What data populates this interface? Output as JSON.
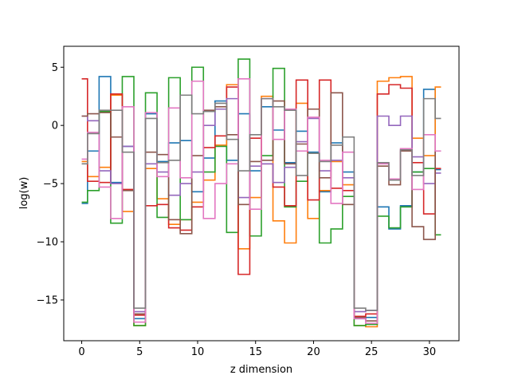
{
  "chart_data": {
    "type": "line",
    "drawstyle": "steps-mid",
    "title": "",
    "xlabel": "z dimension",
    "ylabel": "log(w)",
    "xlim": [
      -1.55,
      32.55
    ],
    "ylim": [
      -18.5,
      6.8
    ],
    "xticks": [
      0,
      5,
      10,
      15,
      20,
      25,
      30
    ],
    "yticks": [
      5,
      0,
      -5,
      -10,
      -15
    ],
    "ytick_labels": [
      "5",
      "0",
      "−5",
      "−10",
      "−15"
    ],
    "grid": false,
    "legend": "none",
    "x": [
      0,
      1,
      2,
      3,
      4,
      5,
      6,
      7,
      8,
      9,
      10,
      11,
      12,
      13,
      14,
      15,
      16,
      17,
      18,
      19,
      20,
      21,
      22,
      23,
      24,
      25,
      26,
      27,
      28,
      29,
      30,
      31
    ],
    "series": [
      {
        "color": "#1f77b4",
        "values": [
          -6.7,
          -2.2,
          4.2,
          -4.9,
          -1.8,
          -16.6,
          1.0,
          -3.1,
          -1.5,
          -1.3,
          -5.7,
          -2.8,
          2.1,
          -3.0,
          1.0,
          -3.9,
          1.6,
          -0.4,
          -3.2,
          -0.5,
          -2.3,
          -5.7,
          -1.5,
          -4.0,
          -16.6,
          -16.5,
          -7.0,
          -8.9,
          -6.9,
          -4.0,
          3.1,
          -3.8
        ]
      },
      {
        "color": "#ff7f0e",
        "values": [
          -3.1,
          -4.4,
          -3.6,
          2.6,
          -7.4,
          -17.2,
          -3.7,
          -6.3,
          -8.5,
          -8.1,
          -6.6,
          -4.7,
          -1.7,
          3.5,
          -10.6,
          -6.2,
          2.5,
          -8.2,
          -10.1,
          1.9,
          -8.0,
          -5.6,
          -3.1,
          -5.1,
          -17.2,
          -17.3,
          3.8,
          4.1,
          4.2,
          -1.1,
          -2.6,
          3.3
        ]
      },
      {
        "color": "#2ca02c",
        "values": [
          -6.6,
          -5.6,
          1.2,
          -8.4,
          4.2,
          -17.2,
          2.8,
          -7.9,
          4.1,
          -8.1,
          5.0,
          -4.0,
          -1.8,
          -9.2,
          5.7,
          -9.5,
          -2.6,
          4.9,
          -7.0,
          -4.8,
          -2.4,
          -10.1,
          -8.9,
          -6.1,
          -17.2,
          -17.1,
          -7.8,
          -8.8,
          -7.0,
          -4.0,
          -3.7,
          -9.4
        ]
      },
      {
        "color": "#d62728",
        "values": [
          4.0,
          -4.8,
          -4.9,
          2.7,
          -5.5,
          -16.3,
          -6.9,
          -6.8,
          -8.8,
          -9.0,
          -7.0,
          -1.9,
          -0.9,
          3.3,
          -12.8,
          -1.1,
          -3.3,
          -5.3,
          -6.9,
          3.9,
          -6.4,
          3.9,
          -5.4,
          -5.6,
          -16.4,
          -16.2,
          2.7,
          3.5,
          3.2,
          -3.2,
          -7.6,
          -3.7
        ]
      },
      {
        "color": "#9467bd",
        "values": [
          0.8,
          0.4,
          -3.9,
          -5.0,
          -1.8,
          -16.0,
          -3.3,
          -4.0,
          -6.0,
          -5.0,
          -4.0,
          0.0,
          1.4,
          2.3,
          -6.2,
          -3.5,
          -3.3,
          -4.9,
          -3.6,
          -1.4,
          0.6,
          -3.9,
          -3.0,
          -4.5,
          -16.0,
          -15.9,
          0.8,
          0.0,
          0.8,
          -2.7,
          -5.0,
          -4.1
        ]
      },
      {
        "color": "#8c564b",
        "values": [
          0.8,
          1.0,
          1.1,
          -1.0,
          -5.6,
          -16.2,
          -2.3,
          -2.5,
          -8.1,
          -9.3,
          -2.6,
          1.3,
          1.6,
          -0.8,
          -6.8,
          -3.1,
          -3.0,
          2.1,
          -3.3,
          -1.6,
          1.4,
          -4.5,
          2.8,
          -6.8,
          -16.5,
          -16.8,
          -3.5,
          -5.1,
          -2.2,
          -8.7,
          -9.8,
          -2.2
        ]
      },
      {
        "color": "#e377c2",
        "values": [
          -2.9,
          -0.6,
          -5.3,
          -8.0,
          1.6,
          -16.9,
          1.1,
          -4.4,
          1.5,
          -4.5,
          3.8,
          -8.0,
          -5.0,
          -3.3,
          4.0,
          -7.2,
          2.3,
          -1.2,
          1.4,
          -2.2,
          0.7,
          -3.0,
          -6.7,
          -2.3,
          -16.6,
          -17.0,
          -3.3,
          -4.6,
          -2.0,
          -5.5,
          -0.8,
          -2.2
        ]
      },
      {
        "color": "#7f7f7f",
        "values": [
          -3.3,
          -0.7,
          1.3,
          1.3,
          -2.3,
          -15.7,
          0.6,
          -3.2,
          -3.0,
          2.6,
          1.0,
          1.2,
          1.9,
          -1.2,
          -3.9,
          -0.8,
          2.3,
          1.6,
          1.3,
          -4.3,
          -2.4,
          -3.1,
          -1.7,
          -1.0,
          -15.7,
          -15.9,
          -3.2,
          -4.7,
          -2.1,
          -4.3,
          2.3,
          0.6
        ]
      }
    ]
  }
}
